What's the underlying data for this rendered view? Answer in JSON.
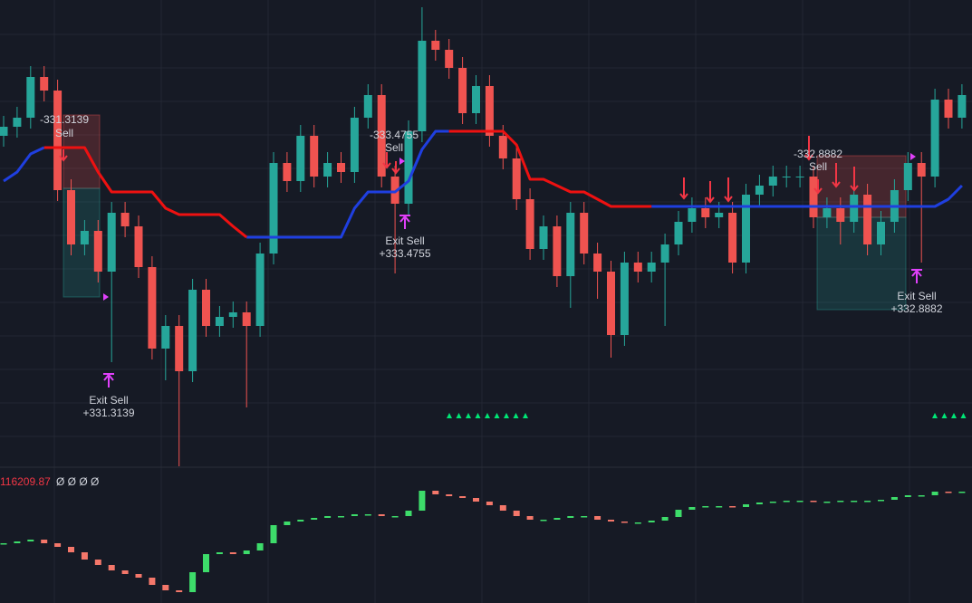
{
  "chart_data": {
    "type": "candlestick",
    "ylim": [
      0,
      520
    ],
    "open": [
      370,
      380,
      390,
      435,
      420,
      310,
      250,
      265,
      220,
      285,
      270,
      225,
      135,
      160,
      110,
      200,
      160,
      170,
      175,
      160,
      240,
      340,
      320,
      370,
      325,
      340,
      330,
      390,
      415,
      325,
      295,
      375,
      475,
      465,
      445,
      395,
      425,
      370,
      345,
      300,
      245,
      270,
      215,
      285,
      240,
      220,
      150,
      230,
      220,
      230,
      250,
      275,
      290,
      280,
      285,
      230,
      305,
      315,
      325,
      325,
      325,
      280,
      290,
      275,
      305,
      250,
      275,
      310,
      340,
      325,
      410,
      390
    ],
    "high": [
      392,
      402,
      447,
      447,
      432,
      322,
      277,
      277,
      297,
      297,
      282,
      237,
      172,
      172,
      212,
      212,
      182,
      187,
      187,
      252,
      352,
      352,
      382,
      382,
      352,
      352,
      402,
      427,
      427,
      337,
      387,
      512,
      487,
      477,
      457,
      437,
      437,
      382,
      357,
      312,
      282,
      282,
      297,
      297,
      252,
      232,
      242,
      242,
      242,
      262,
      287,
      302,
      302,
      297,
      297,
      317,
      327,
      337,
      337,
      337,
      337,
      302,
      302,
      317,
      317,
      287,
      322,
      352,
      352,
      422,
      422,
      427
    ],
    "low": [
      358,
      368,
      378,
      408,
      298,
      238,
      238,
      208,
      120,
      258,
      213,
      123,
      100,
      5,
      98,
      148,
      148,
      158,
      70,
      148,
      228,
      308,
      308,
      313,
      313,
      318,
      318,
      378,
      313,
      218,
      283,
      363,
      453,
      433,
      383,
      383,
      358,
      333,
      288,
      233,
      233,
      203,
      180,
      228,
      190,
      125,
      138,
      208,
      208,
      160,
      238,
      263,
      268,
      268,
      218,
      218,
      293,
      303,
      313,
      313,
      268,
      268,
      250,
      263,
      238,
      238,
      263,
      298,
      230,
      313,
      378,
      378
    ],
    "close": [
      380,
      390,
      435,
      420,
      310,
      250,
      265,
      220,
      285,
      270,
      225,
      135,
      160,
      110,
      200,
      160,
      170,
      175,
      160,
      240,
      340,
      320,
      370,
      325,
      340,
      330,
      390,
      415,
      325,
      295,
      375,
      475,
      465,
      445,
      395,
      425,
      370,
      345,
      300,
      245,
      270,
      215,
      285,
      240,
      220,
      150,
      230,
      220,
      230,
      250,
      275,
      290,
      280,
      285,
      230,
      305,
      315,
      325,
      325,
      325,
      280,
      290,
      275,
      305,
      250,
      275,
      310,
      340,
      325,
      410,
      390,
      415
    ],
    "up_color": "#26a69a",
    "down_color": "#ef5350",
    "series": [
      {
        "color": "#1f3fe0",
        "values": [
          320,
          330,
          350,
          357,
          null,
          null,
          null,
          null,
          null,
          null,
          null,
          null,
          null,
          null,
          null,
          null,
          null,
          null,
          258,
          258,
          258,
          258,
          258,
          258,
          258,
          258,
          290,
          308,
          308,
          308,
          320,
          355,
          375,
          375,
          null,
          null,
          null,
          null,
          null,
          null,
          null,
          null,
          null,
          null,
          null,
          null,
          null,
          null,
          292,
          292,
          292,
          292,
          292,
          292,
          292,
          292,
          292,
          292,
          292,
          292,
          292,
          292,
          292,
          292,
          292,
          292,
          292,
          292,
          292,
          292,
          300,
          315
        ]
      },
      {
        "color": "#ee1111",
        "values": [
          null,
          null,
          null,
          357,
          357,
          357,
          357,
          330,
          308,
          308,
          308,
          308,
          290,
          283,
          283,
          283,
          283,
          270,
          258,
          null,
          null,
          null,
          null,
          null,
          null,
          null,
          null,
          null,
          null,
          null,
          null,
          null,
          null,
          375,
          375,
          375,
          375,
          375,
          360,
          322,
          322,
          315,
          308,
          308,
          300,
          292,
          292,
          292,
          292,
          null,
          null,
          null,
          null,
          null,
          null,
          null,
          null,
          null,
          null,
          null,
          null,
          null,
          null,
          null,
          null,
          null,
          null,
          null,
          null,
          null,
          null,
          null
        ]
      }
    ],
    "trades": [
      {
        "entry_value": "-331.3139",
        "entry_side": "Sell",
        "exit_label": "Exit Sell",
        "exit_value": "+331.3139"
      },
      {
        "entry_value": "-333.4755",
        "entry_side": "Sell",
        "exit_label": "Exit Sell",
        "exit_value": "+333.4755"
      },
      {
        "entry_value": "-332.8882",
        "entry_side": "Sell",
        "exit_label": "Exit Sell",
        "exit_value": "+332.8882"
      }
    ],
    "indicator": {
      "value": 116209.87,
      "params": "Ø Ø Ø Ø",
      "ylim": [
        0,
        151
      ],
      "up_color": "#3ddc6a",
      "down_color": "#f4776a",
      "values": [
        66,
        68,
        70,
        66,
        62,
        56,
        48,
        42,
        36,
        32,
        28,
        20,
        14,
        12,
        34,
        54,
        56,
        54,
        58,
        66,
        86,
        90,
        92,
        94,
        96,
        96,
        98,
        98,
        96,
        96,
        102,
        124,
        120,
        118,
        116,
        112,
        108,
        102,
        96,
        92,
        92,
        94,
        96,
        96,
        92,
        90,
        89,
        89,
        91,
        95,
        103,
        106,
        107,
        107,
        106,
        109,
        111,
        112,
        113,
        113,
        112,
        112,
        113,
        113,
        113,
        114,
        117,
        119,
        119,
        123,
        122,
        123
      ]
    }
  }
}
